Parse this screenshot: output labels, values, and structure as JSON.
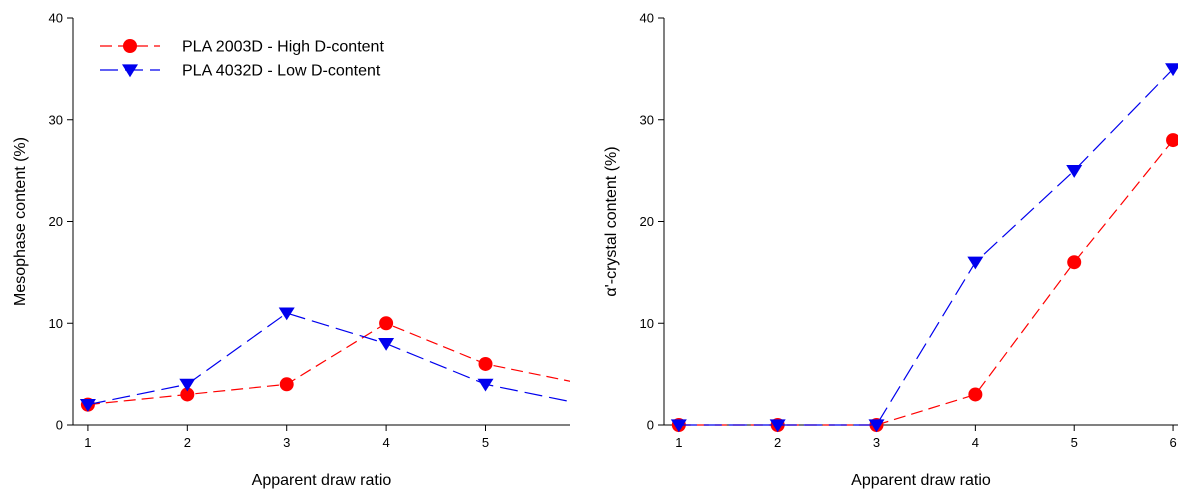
{
  "chart_data": [
    {
      "type": "line",
      "xlabel": "Apparent draw ratio",
      "ylabel": "Mesophase content (%)",
      "xlim": [
        0.85,
        5.85
      ],
      "ylim": [
        0,
        40
      ],
      "xticks": [
        1,
        2,
        3,
        4,
        5
      ],
      "yticks": [
        0,
        10,
        20,
        30,
        40
      ],
      "grid": false,
      "legend_placement": "top-left",
      "series": [
        {
          "name": "PLA 2003D - High D-content",
          "color": "#ff0000",
          "marker": "circle",
          "line_style": "dashed",
          "x": [
            1,
            2,
            3,
            4,
            5,
            6
          ],
          "y": [
            2,
            3,
            4,
            10,
            6,
            4
          ]
        },
        {
          "name": "PLA 4032D - Low D-content",
          "color": "#0000ee",
          "marker": "triangle-down",
          "line_style": "dashed",
          "x": [
            1,
            2,
            3,
            4,
            5,
            6
          ],
          "y": [
            2,
            4,
            11,
            8,
            4,
            2
          ]
        }
      ]
    },
    {
      "type": "line",
      "xlabel": "Apparent draw ratio",
      "ylabel": "α'-crystal content (%)",
      "xlim": [
        0.85,
        6.05
      ],
      "ylim": [
        0,
        40
      ],
      "xticks": [
        1,
        2,
        3,
        4,
        5,
        6
      ],
      "yticks": [
        0,
        10,
        20,
        30,
        40
      ],
      "grid": false,
      "series": [
        {
          "name": "PLA 2003D - High D-content",
          "color": "#ff0000",
          "marker": "circle",
          "line_style": "dashed",
          "x": [
            1,
            2,
            3,
            4,
            5,
            6
          ],
          "y": [
            0,
            0,
            0,
            3,
            16,
            28
          ]
        },
        {
          "name": "PLA 4032D - Low D-content",
          "color": "#0000ee",
          "marker": "triangle-down",
          "line_style": "dashed",
          "x": [
            1,
            2,
            3,
            4,
            5,
            6
          ],
          "y": [
            0,
            0,
            0,
            16,
            25,
            35
          ]
        }
      ]
    }
  ]
}
